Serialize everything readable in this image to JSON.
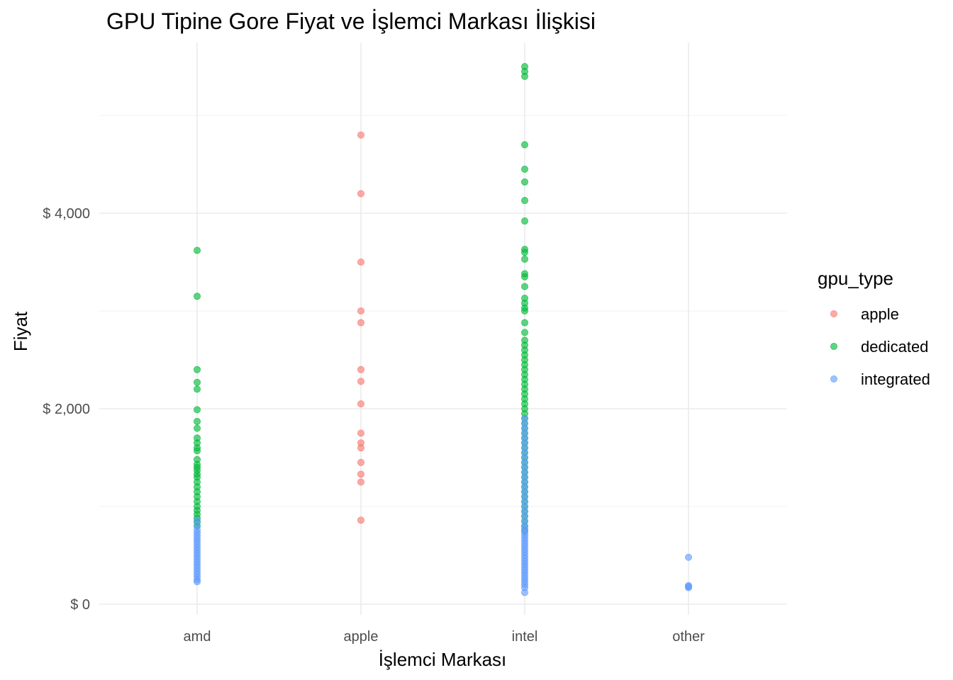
{
  "chart_data": {
    "type": "scatter",
    "title": "GPU Tipine Gore Fiyat ve İşlemci Markası İlişkisi",
    "xlabel": "İşlemci Markası",
    "ylabel": "Fiyat",
    "categories": [
      "amd",
      "apple",
      "intel",
      "other"
    ],
    "ylim": [
      -150,
      5600
    ],
    "y_ticks": [
      0,
      2000,
      4000
    ],
    "y_tick_labels": [
      "$ 0",
      "$ 2,000",
      "$ 4,000"
    ],
    "grid": true,
    "legend": {
      "title": "gpu_type",
      "placement": "right"
    },
    "series": [
      {
        "name": "apple",
        "color": "#F8766D",
        "points": [
          [
            "apple",
            4800
          ],
          [
            "apple",
            4200
          ],
          [
            "apple",
            3500
          ],
          [
            "apple",
            3000
          ],
          [
            "apple",
            2880
          ],
          [
            "apple",
            2400
          ],
          [
            "apple",
            2280
          ],
          [
            "apple",
            2050
          ],
          [
            "apple",
            1750
          ],
          [
            "apple",
            1650
          ],
          [
            "apple",
            1600
          ],
          [
            "apple",
            1450
          ],
          [
            "apple",
            1330
          ],
          [
            "apple",
            1250
          ],
          [
            "apple",
            860
          ]
        ]
      },
      {
        "name": "dedicated",
        "color": "#00BA38",
        "points": [
          [
            "amd",
            3620
          ],
          [
            "amd",
            3150
          ],
          [
            "amd",
            2400
          ],
          [
            "amd",
            2270
          ],
          [
            "amd",
            2200
          ],
          [
            "amd",
            1990
          ],
          [
            "amd",
            1870
          ],
          [
            "amd",
            1800
          ],
          [
            "amd",
            1700
          ],
          [
            "amd",
            1650
          ],
          [
            "amd",
            1600
          ],
          [
            "amd",
            1570
          ],
          [
            "amd",
            1480
          ],
          [
            "amd",
            1430
          ],
          [
            "amd",
            1400
          ],
          [
            "amd",
            1370
          ],
          [
            "amd",
            1330
          ],
          [
            "amd",
            1300
          ],
          [
            "amd",
            1250
          ],
          [
            "amd",
            1200
          ],
          [
            "amd",
            1150
          ],
          [
            "amd",
            1100
          ],
          [
            "amd",
            1050
          ],
          [
            "amd",
            1000
          ],
          [
            "amd",
            960
          ],
          [
            "amd",
            920
          ],
          [
            "amd",
            880
          ],
          [
            "amd",
            840
          ],
          [
            "amd",
            800
          ],
          [
            "intel",
            5500
          ],
          [
            "intel",
            5450
          ],
          [
            "intel",
            5400
          ],
          [
            "intel",
            4700
          ],
          [
            "intel",
            4450
          ],
          [
            "intel",
            4320
          ],
          [
            "intel",
            4130
          ],
          [
            "intel",
            3920
          ],
          [
            "intel",
            3630
          ],
          [
            "intel",
            3600
          ],
          [
            "intel",
            3530
          ],
          [
            "intel",
            3380
          ],
          [
            "intel",
            3350
          ],
          [
            "intel",
            3250
          ],
          [
            "intel",
            3130
          ],
          [
            "intel",
            3080
          ],
          [
            "intel",
            3030
          ],
          [
            "intel",
            3000
          ],
          [
            "intel",
            2880
          ],
          [
            "intel",
            2780
          ],
          [
            "intel",
            2700
          ],
          [
            "intel",
            2650
          ],
          [
            "intel",
            2600
          ],
          [
            "intel",
            2550
          ],
          [
            "intel",
            2500
          ],
          [
            "intel",
            2450
          ],
          [
            "intel",
            2400
          ],
          [
            "intel",
            2350
          ],
          [
            "intel",
            2300
          ],
          [
            "intel",
            2250
          ],
          [
            "intel",
            2200
          ],
          [
            "intel",
            2150
          ],
          [
            "intel",
            2100
          ],
          [
            "intel",
            2050
          ],
          [
            "intel",
            2000
          ],
          [
            "intel",
            1950
          ],
          [
            "intel",
            1900
          ],
          [
            "intel",
            1850
          ],
          [
            "intel",
            1800
          ],
          [
            "intel",
            1750
          ],
          [
            "intel",
            1700
          ],
          [
            "intel",
            1650
          ],
          [
            "intel",
            1600
          ],
          [
            "intel",
            1550
          ],
          [
            "intel",
            1500
          ],
          [
            "intel",
            1450
          ],
          [
            "intel",
            1400
          ],
          [
            "intel",
            1350
          ],
          [
            "intel",
            1300
          ],
          [
            "intel",
            1250
          ],
          [
            "intel",
            1200
          ],
          [
            "intel",
            1150
          ],
          [
            "intel",
            1100
          ],
          [
            "intel",
            1050
          ],
          [
            "intel",
            1000
          ],
          [
            "intel",
            950
          ],
          [
            "intel",
            900
          ],
          [
            "intel",
            850
          ],
          [
            "intel",
            800
          ],
          [
            "intel",
            750
          ]
        ]
      },
      {
        "name": "integrated",
        "color": "#619CFF",
        "points": [
          [
            "amd",
            860
          ],
          [
            "amd",
            800
          ],
          [
            "amd",
            760
          ],
          [
            "amd",
            730
          ],
          [
            "amd",
            700
          ],
          [
            "amd",
            670
          ],
          [
            "amd",
            640
          ],
          [
            "amd",
            610
          ],
          [
            "amd",
            580
          ],
          [
            "amd",
            550
          ],
          [
            "amd",
            520
          ],
          [
            "amd",
            490
          ],
          [
            "amd",
            460
          ],
          [
            "amd",
            430
          ],
          [
            "amd",
            400
          ],
          [
            "amd",
            370
          ],
          [
            "amd",
            340
          ],
          [
            "amd",
            310
          ],
          [
            "amd",
            280
          ],
          [
            "amd",
            250
          ],
          [
            "amd",
            230
          ],
          [
            "intel",
            1900
          ],
          [
            "intel",
            1850
          ],
          [
            "intel",
            1800
          ],
          [
            "intel",
            1750
          ],
          [
            "intel",
            1700
          ],
          [
            "intel",
            1650
          ],
          [
            "intel",
            1600
          ],
          [
            "intel",
            1550
          ],
          [
            "intel",
            1500
          ],
          [
            "intel",
            1450
          ],
          [
            "intel",
            1400
          ],
          [
            "intel",
            1350
          ],
          [
            "intel",
            1300
          ],
          [
            "intel",
            1250
          ],
          [
            "intel",
            1200
          ],
          [
            "intel",
            1150
          ],
          [
            "intel",
            1100
          ],
          [
            "intel",
            1050
          ],
          [
            "intel",
            1000
          ],
          [
            "intel",
            950
          ],
          [
            "intel",
            900
          ],
          [
            "intel",
            850
          ],
          [
            "intel",
            800
          ],
          [
            "intel",
            770
          ],
          [
            "intel",
            740
          ],
          [
            "intel",
            710
          ],
          [
            "intel",
            680
          ],
          [
            "intel",
            650
          ],
          [
            "intel",
            620
          ],
          [
            "intel",
            590
          ],
          [
            "intel",
            560
          ],
          [
            "intel",
            530
          ],
          [
            "intel",
            500
          ],
          [
            "intel",
            470
          ],
          [
            "intel",
            440
          ],
          [
            "intel",
            410
          ],
          [
            "intel",
            380
          ],
          [
            "intel",
            350
          ],
          [
            "intel",
            320
          ],
          [
            "intel",
            290
          ],
          [
            "intel",
            260
          ],
          [
            "intel",
            230
          ],
          [
            "intel",
            200
          ],
          [
            "intel",
            170
          ],
          [
            "intel",
            120
          ],
          [
            "other",
            480
          ],
          [
            "other",
            190
          ],
          [
            "other",
            180
          ],
          [
            "other",
            170
          ]
        ]
      }
    ]
  }
}
